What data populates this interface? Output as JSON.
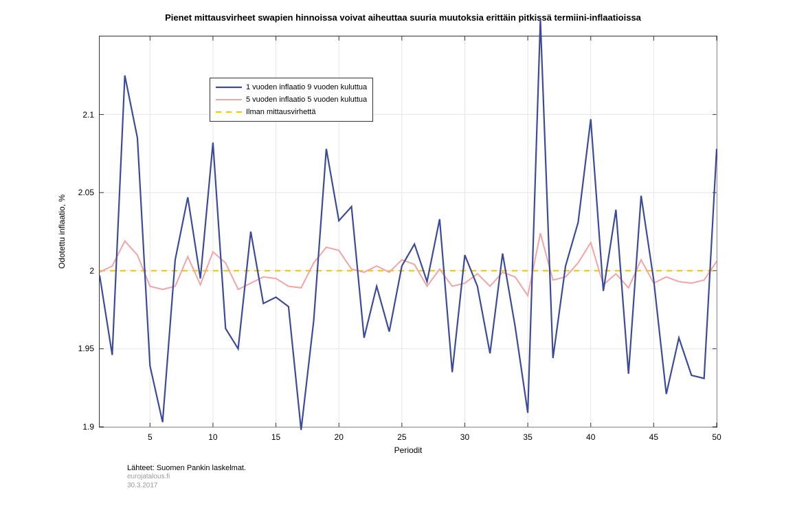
{
  "chart": {
    "type": "line",
    "title": "Pienet mittausvirheet swapien hinnoissa voivat aiheuttaa suuria muutoksia erittäin pitkissä termiini-inflaatioissa",
    "title_fontsize": 13,
    "title_fontweight": "bold",
    "background_color": "#ffffff",
    "plot_background_color": "#ffffff",
    "border_color": "#333333",
    "grid_color": "#e6e6e6",
    "grid_on": true,
    "xlabel": "Periodit",
    "ylabel": "Odotettu inflaatio, %",
    "label_fontsize": 12,
    "tick_fontsize": 12,
    "xlim": [
      1,
      50
    ],
    "ylim": [
      1.9,
      2.15
    ],
    "xticks": [
      5,
      10,
      15,
      20,
      25,
      30,
      35,
      40,
      45,
      50
    ],
    "yticks": [
      1.9,
      1.95,
      2.0,
      2.05,
      2.1
    ],
    "ytick_labels": [
      "1.9",
      "1.95",
      "2",
      "2.05",
      "2.1"
    ],
    "legend": {
      "position": "upper-left",
      "border_color": "#333333",
      "background_color": "#ffffff",
      "fontsize": 11,
      "items": [
        {
          "label": "1 vuoden inflaatio 9 vuoden kuluttua",
          "color": "#3b4b9a",
          "linewidth": 2.2,
          "dash": "none"
        },
        {
          "label": "5 vuoden inflaatio 5 vuoden kuluttua",
          "color": "#f5a3a3",
          "linewidth": 2.0,
          "dash": "none"
        },
        {
          "label": "Ilman mittausvirhettä",
          "color": "#f0cc00",
          "linewidth": 2.2,
          "dash": "8,7"
        }
      ]
    },
    "series": [
      {
        "name": "series_blue",
        "color": "#3b4b9a",
        "linewidth": 2.2,
        "dash": "none",
        "x": [
          1,
          2,
          3,
          4,
          5,
          6,
          7,
          8,
          9,
          10,
          11,
          12,
          13,
          14,
          15,
          16,
          17,
          18,
          19,
          20,
          21,
          22,
          23,
          24,
          25,
          26,
          27,
          28,
          29,
          30,
          31,
          32,
          33,
          34,
          35,
          36,
          37,
          38,
          39,
          40,
          41,
          42,
          43,
          44,
          45,
          46,
          47,
          48,
          49,
          50
        ],
        "y": [
          1.997,
          1.946,
          2.125,
          2.085,
          1.939,
          1.903,
          2.007,
          2.047,
          1.995,
          2.082,
          1.963,
          1.95,
          2.025,
          1.979,
          1.983,
          1.977,
          1.898,
          1.968,
          2.078,
          2.032,
          2.041,
          1.957,
          1.99,
          1.961,
          2.003,
          2.017,
          1.993,
          2.033,
          1.935,
          2.01,
          1.99,
          1.947,
          2.011,
          1.964,
          1.909,
          2.161,
          1.944,
          2.003,
          2.031,
          2.097,
          1.987,
          2.039,
          1.934,
          2.048,
          1.994,
          1.921,
          1.957,
          1.933,
          1.931,
          2.078
        ]
      },
      {
        "name": "series_pink",
        "color": "#f5a3a3",
        "linewidth": 2.0,
        "dash": "none",
        "x": [
          1,
          2,
          3,
          4,
          5,
          6,
          7,
          8,
          9,
          10,
          11,
          12,
          13,
          14,
          15,
          16,
          17,
          18,
          19,
          20,
          21,
          22,
          23,
          24,
          25,
          26,
          27,
          28,
          29,
          30,
          31,
          32,
          33,
          34,
          35,
          36,
          37,
          38,
          39,
          40,
          41,
          42,
          43,
          44,
          45,
          46,
          47,
          48,
          49,
          50
        ],
        "y": [
          1.999,
          2.003,
          2.019,
          2.01,
          1.99,
          1.988,
          1.99,
          2.009,
          1.991,
          2.012,
          2.005,
          1.988,
          1.992,
          1.996,
          1.995,
          1.99,
          1.989,
          2.005,
          2.015,
          2.013,
          2.001,
          1.999,
          2.003,
          1.999,
          2.007,
          2.004,
          1.99,
          2.001,
          1.99,
          1.992,
          1.998,
          1.99,
          1.999,
          1.996,
          1.984,
          2.024,
          1.994,
          1.996,
          2.005,
          2.018,
          1.991,
          1.998,
          1.989,
          2.007,
          1.992,
          1.996,
          1.993,
          1.992,
          1.994,
          2.006
        ]
      },
      {
        "name": "series_reference",
        "color": "#f0cc00",
        "linewidth": 2.2,
        "dash": "8,7",
        "x": [
          1,
          50
        ],
        "y": [
          2.0,
          2.0
        ]
      }
    ]
  },
  "footer": {
    "source": "Lähteet: Suomen Pankin laskelmat.",
    "site": "eurojatalous.fi",
    "date": "30.3.2017"
  }
}
